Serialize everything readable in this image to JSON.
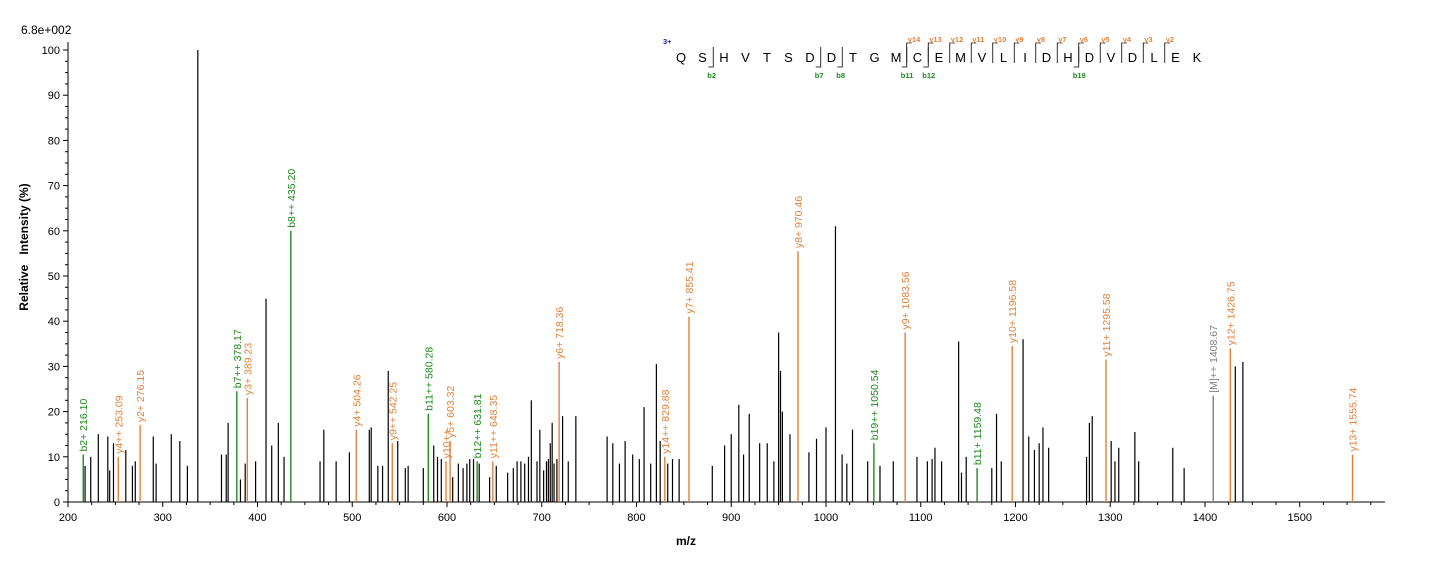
{
  "colors": {
    "unannotated": "#000000",
    "y_ion": "#e0823b",
    "b_ion": "#1e8a1e",
    "precursor": "#808080",
    "charge": "#1a1aa6"
  },
  "scale_label": "6.8e+002",
  "chart_data": {
    "type": "bar",
    "xlabel": "m/z",
    "ylabel": "Relative   Intensity (%)",
    "xlim": [
      200,
      1590
    ],
    "ylim": [
      0,
      100
    ],
    "x_ticks": [
      200,
      300,
      400,
      500,
      600,
      700,
      800,
      900,
      1000,
      1100,
      1200,
      1300,
      1400,
      1500
    ],
    "y_ticks": [
      0,
      10,
      20,
      30,
      40,
      50,
      60,
      70,
      80,
      90,
      100
    ],
    "annotated_peaks": [
      {
        "mz": 216.1,
        "intensity": 10.5,
        "label": "b2+ 216.10",
        "type": "b"
      },
      {
        "mz": 253.09,
        "intensity": 10,
        "label": "y4++ 253.09",
        "type": "y"
      },
      {
        "mz": 276.15,
        "intensity": 17,
        "label": "y2+ 276.15",
        "type": "y"
      },
      {
        "mz": 378.17,
        "intensity": 24.5,
        "label": "b7++ 378.17",
        "type": "b"
      },
      {
        "mz": 389.23,
        "intensity": 23,
        "label": "y3+ 389.23",
        "type": "y"
      },
      {
        "mz": 435.2,
        "intensity": 60,
        "label": "b8++ 435.20",
        "type": "b"
      },
      {
        "mz": 504.26,
        "intensity": 16,
        "label": "y4+ 504.26",
        "type": "y"
      },
      {
        "mz": 542.25,
        "intensity": 13,
        "label": "y9++ 542.25",
        "type": "y"
      },
      {
        "mz": 580.28,
        "intensity": 19.5,
        "label": "b11++ 580.28",
        "type": "b"
      },
      {
        "mz": 599.0,
        "intensity": 9,
        "label": "y10++",
        "type": "y"
      },
      {
        "mz": 603.32,
        "intensity": 13.5,
        "label": "y5+ 603.32",
        "type": "y"
      },
      {
        "mz": 631.81,
        "intensity": 9,
        "label": "b12++ 631.81",
        "type": "b"
      },
      {
        "mz": 648.35,
        "intensity": 9,
        "label": "y11++ 648.35",
        "type": "y"
      },
      {
        "mz": 718.36,
        "intensity": 31,
        "label": "y6+ 718.36",
        "type": "y"
      },
      {
        "mz": 829.88,
        "intensity": 10,
        "label": "y14++ 829.88",
        "type": "y"
      },
      {
        "mz": 855.41,
        "intensity": 41,
        "label": "y7+ 855.41",
        "type": "y"
      },
      {
        "mz": 970.46,
        "intensity": 55.5,
        "label": "y8+ 970.46",
        "type": "y"
      },
      {
        "mz": 1050.54,
        "intensity": 13,
        "label": "b19++ 1050.54",
        "type": "b"
      },
      {
        "mz": 1083.56,
        "intensity": 37.5,
        "label": "y9+ 1083.56",
        "type": "y"
      },
      {
        "mz": 1159.48,
        "intensity": 7.5,
        "label": "b11+ 1159.48",
        "type": "b"
      },
      {
        "mz": 1196.58,
        "intensity": 34.5,
        "label": "y10+ 1196.58",
        "type": "y"
      },
      {
        "mz": 1295.58,
        "intensity": 31.5,
        "label": "y11+ 1295.58",
        "type": "y"
      },
      {
        "mz": 1408.67,
        "intensity": 23.5,
        "label": "[M]++ 1408.67",
        "type": "precursor"
      },
      {
        "mz": 1426.75,
        "intensity": 34,
        "label": "y12+ 1426.75",
        "type": "y"
      },
      {
        "mz": 1555.74,
        "intensity": 10.5,
        "label": "y13+ 1555.74",
        "type": "y"
      }
    ],
    "unannotated_peaks": [
      [
        218,
        8
      ],
      [
        224,
        10
      ],
      [
        232,
        15
      ],
      [
        242,
        14.5
      ],
      [
        244,
        7
      ],
      [
        248,
        13
      ],
      [
        261,
        11.5
      ],
      [
        268,
        8
      ],
      [
        271,
        9
      ],
      [
        290,
        14.5
      ],
      [
        293,
        8.5
      ],
      [
        309,
        15
      ],
      [
        318,
        13.5
      ],
      [
        326,
        8
      ],
      [
        337,
        100
      ],
      [
        362,
        10.5
      ],
      [
        367,
        10.5
      ],
      [
        369,
        17.5
      ],
      [
        382,
        5
      ],
      [
        387,
        8.5
      ],
      [
        398,
        9
      ],
      [
        409,
        45
      ],
      [
        415,
        12.5
      ],
      [
        422,
        17.5
      ],
      [
        428,
        10
      ],
      [
        466,
        9
      ],
      [
        470,
        16
      ],
      [
        483,
        9
      ],
      [
        497,
        11
      ],
      [
        518,
        16
      ],
      [
        520,
        16.5
      ],
      [
        527,
        8
      ],
      [
        532,
        8
      ],
      [
        538,
        29
      ],
      [
        548,
        13.5
      ],
      [
        556,
        7.5
      ],
      [
        559,
        8
      ],
      [
        575,
        7.5
      ],
      [
        586,
        12.5
      ],
      [
        590,
        10
      ],
      [
        594,
        9.5
      ],
      [
        606,
        5.5
      ],
      [
        612,
        8.5
      ],
      [
        617,
        7.5
      ],
      [
        621,
        8.5
      ],
      [
        624,
        9.5
      ],
      [
        628,
        9.5
      ],
      [
        634,
        8.5
      ],
      [
        645,
        5.5
      ],
      [
        652,
        8
      ],
      [
        664,
        6.5
      ],
      [
        670,
        7.5
      ],
      [
        674,
        9
      ],
      [
        678,
        9
      ],
      [
        682,
        8.5
      ],
      [
        686,
        10
      ],
      [
        689,
        22.5
      ],
      [
        695,
        9
      ],
      [
        698,
        16
      ],
      [
        702,
        7
      ],
      [
        705,
        9
      ],
      [
        707,
        9.5
      ],
      [
        709,
        13
      ],
      [
        711,
        17.5
      ],
      [
        713,
        8.5
      ],
      [
        716,
        9.5
      ],
      [
        722,
        19
      ],
      [
        728,
        9
      ],
      [
        736,
        19
      ],
      [
        769,
        14.5
      ],
      [
        775,
        13
      ],
      [
        782,
        8.5
      ],
      [
        788,
        13.5
      ],
      [
        796,
        10.5
      ],
      [
        803,
        9.5
      ],
      [
        808,
        21
      ],
      [
        815,
        8.5
      ],
      [
        821,
        30.5
      ],
      [
        825,
        13.5
      ],
      [
        833,
        8.5
      ],
      [
        838,
        9.5
      ],
      [
        845,
        9.5
      ],
      [
        880,
        8
      ],
      [
        893,
        12.5
      ],
      [
        900,
        15
      ],
      [
        908,
        21.5
      ],
      [
        913,
        10.5
      ],
      [
        919,
        19.5
      ],
      [
        930,
        13
      ],
      [
        938,
        13
      ],
      [
        945,
        9
      ],
      [
        950,
        37.5
      ],
      [
        952,
        29
      ],
      [
        954,
        20
      ],
      [
        962,
        15
      ],
      [
        982,
        11
      ],
      [
        990,
        14
      ],
      [
        1000,
        16.5
      ],
      [
        1010,
        61
      ],
      [
        1017,
        10.5
      ],
      [
        1022,
        8.5
      ],
      [
        1028,
        16
      ],
      [
        1044,
        9
      ],
      [
        1057,
        8
      ],
      [
        1071,
        9
      ],
      [
        1096,
        10
      ],
      [
        1107,
        9
      ],
      [
        1112,
        9.5
      ],
      [
        1115,
        12
      ],
      [
        1122,
        9
      ],
      [
        1140,
        35.5
      ],
      [
        1143,
        6.5
      ],
      [
        1148,
        10
      ],
      [
        1175,
        7.5
      ],
      [
        1180,
        19.5
      ],
      [
        1185,
        9
      ],
      [
        1208,
        36
      ],
      [
        1214,
        14.5
      ],
      [
        1220,
        11.5
      ],
      [
        1225,
        13
      ],
      [
        1229,
        16.5
      ],
      [
        1235,
        12
      ],
      [
        1275,
        10
      ],
      [
        1278,
        17.5
      ],
      [
        1281,
        19
      ],
      [
        1301,
        13.5
      ],
      [
        1305,
        9
      ],
      [
        1309,
        12
      ],
      [
        1326,
        15.5
      ],
      [
        1330,
        9
      ],
      [
        1366,
        12
      ],
      [
        1378,
        7.5
      ],
      [
        1432,
        30
      ],
      [
        1440,
        31
      ]
    ]
  },
  "sequence": {
    "charge": "3+",
    "residues": [
      "Q",
      "S",
      "H",
      "V",
      "T",
      "S",
      "D",
      "D",
      "T",
      "G",
      "M",
      "C",
      "E",
      "M",
      "V",
      "L",
      "I",
      "D",
      "H",
      "D",
      "V",
      "D",
      "L",
      "E",
      "K"
    ],
    "y_ions": [
      {
        "after": 11,
        "label": "y14"
      },
      {
        "after": 12,
        "label": "y13"
      },
      {
        "after": 13,
        "label": "y12"
      },
      {
        "after": 14,
        "label": "y11"
      },
      {
        "after": 15,
        "label": "y10"
      },
      {
        "after": 16,
        "label": "y9"
      },
      {
        "after": 17,
        "label": "y8"
      },
      {
        "after": 18,
        "label": "y7"
      },
      {
        "after": 19,
        "label": "y6"
      },
      {
        "after": 20,
        "label": "y5"
      },
      {
        "after": 21,
        "label": "y4"
      },
      {
        "after": 22,
        "label": "y3"
      },
      {
        "after": 23,
        "label": "y2"
      }
    ],
    "b_ions": [
      {
        "after": 2,
        "label": "b2"
      },
      {
        "after": 7,
        "label": "b7"
      },
      {
        "after": 8,
        "label": "b8"
      },
      {
        "after": 11,
        "label": "b11"
      },
      {
        "after": 12,
        "label": "b12"
      },
      {
        "after": 19,
        "label": "b19"
      }
    ]
  }
}
